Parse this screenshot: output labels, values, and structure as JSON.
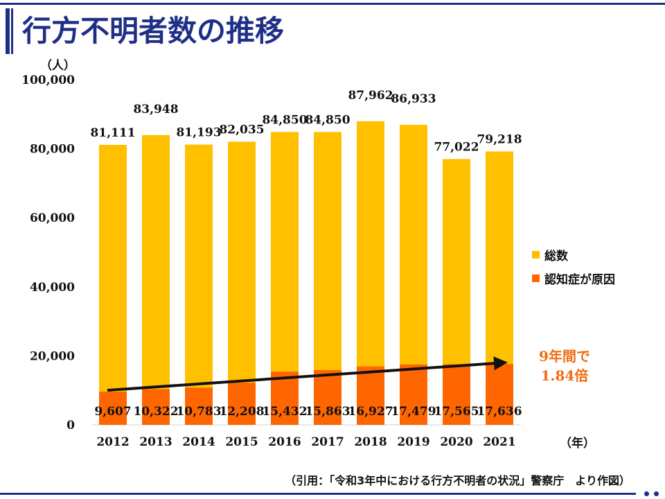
{
  "page": {
    "title": "行方不明者数の推移",
    "y_unit": "（人）",
    "x_unit": "（年）",
    "source": "（引用：「令和3年中における行方不明者の状況」警察庁　より作図）",
    "annotation_line1": "9年間で",
    "annotation_line2": "1.84倍"
  },
  "chart_data": {
    "type": "bar",
    "stacking": "overlapped",
    "categories": [
      "2012",
      "2013",
      "2014",
      "2015",
      "2016",
      "2017",
      "2018",
      "2019",
      "2020",
      "2021"
    ],
    "series": [
      {
        "name": "総数",
        "color": "#ffc000",
        "values": [
          81111,
          83948,
          81193,
          82035,
          84850,
          84850,
          87962,
          86933,
          77022,
          79218
        ],
        "labels": [
          "81,111",
          "83,948",
          "81,193",
          "82,035",
          "84,850",
          "84,850",
          "87,962",
          "86,933",
          "77,022",
          "79,218"
        ]
      },
      {
        "name": "認知症が原因",
        "color": "#ff6600",
        "values": [
          9607,
          10322,
          10783,
          12208,
          15432,
          15863,
          16927,
          17479,
          17565,
          17636
        ],
        "labels": [
          "9,607",
          "10,322",
          "10,783",
          "12,208",
          "15,432",
          "15,863",
          "16,927",
          "17,479",
          "17,565",
          "17,636"
        ]
      }
    ],
    "ylim": [
      0,
      100000
    ],
    "yticks": [
      0,
      20000,
      40000,
      60000,
      80000,
      100000
    ],
    "ytick_labels": [
      "0",
      "20,000",
      "40,000",
      "60,000",
      "80,000",
      "100,000"
    ],
    "grid": false,
    "legend": "right",
    "trend_arrow": {
      "from": "2012",
      "to": "2021"
    }
  }
}
